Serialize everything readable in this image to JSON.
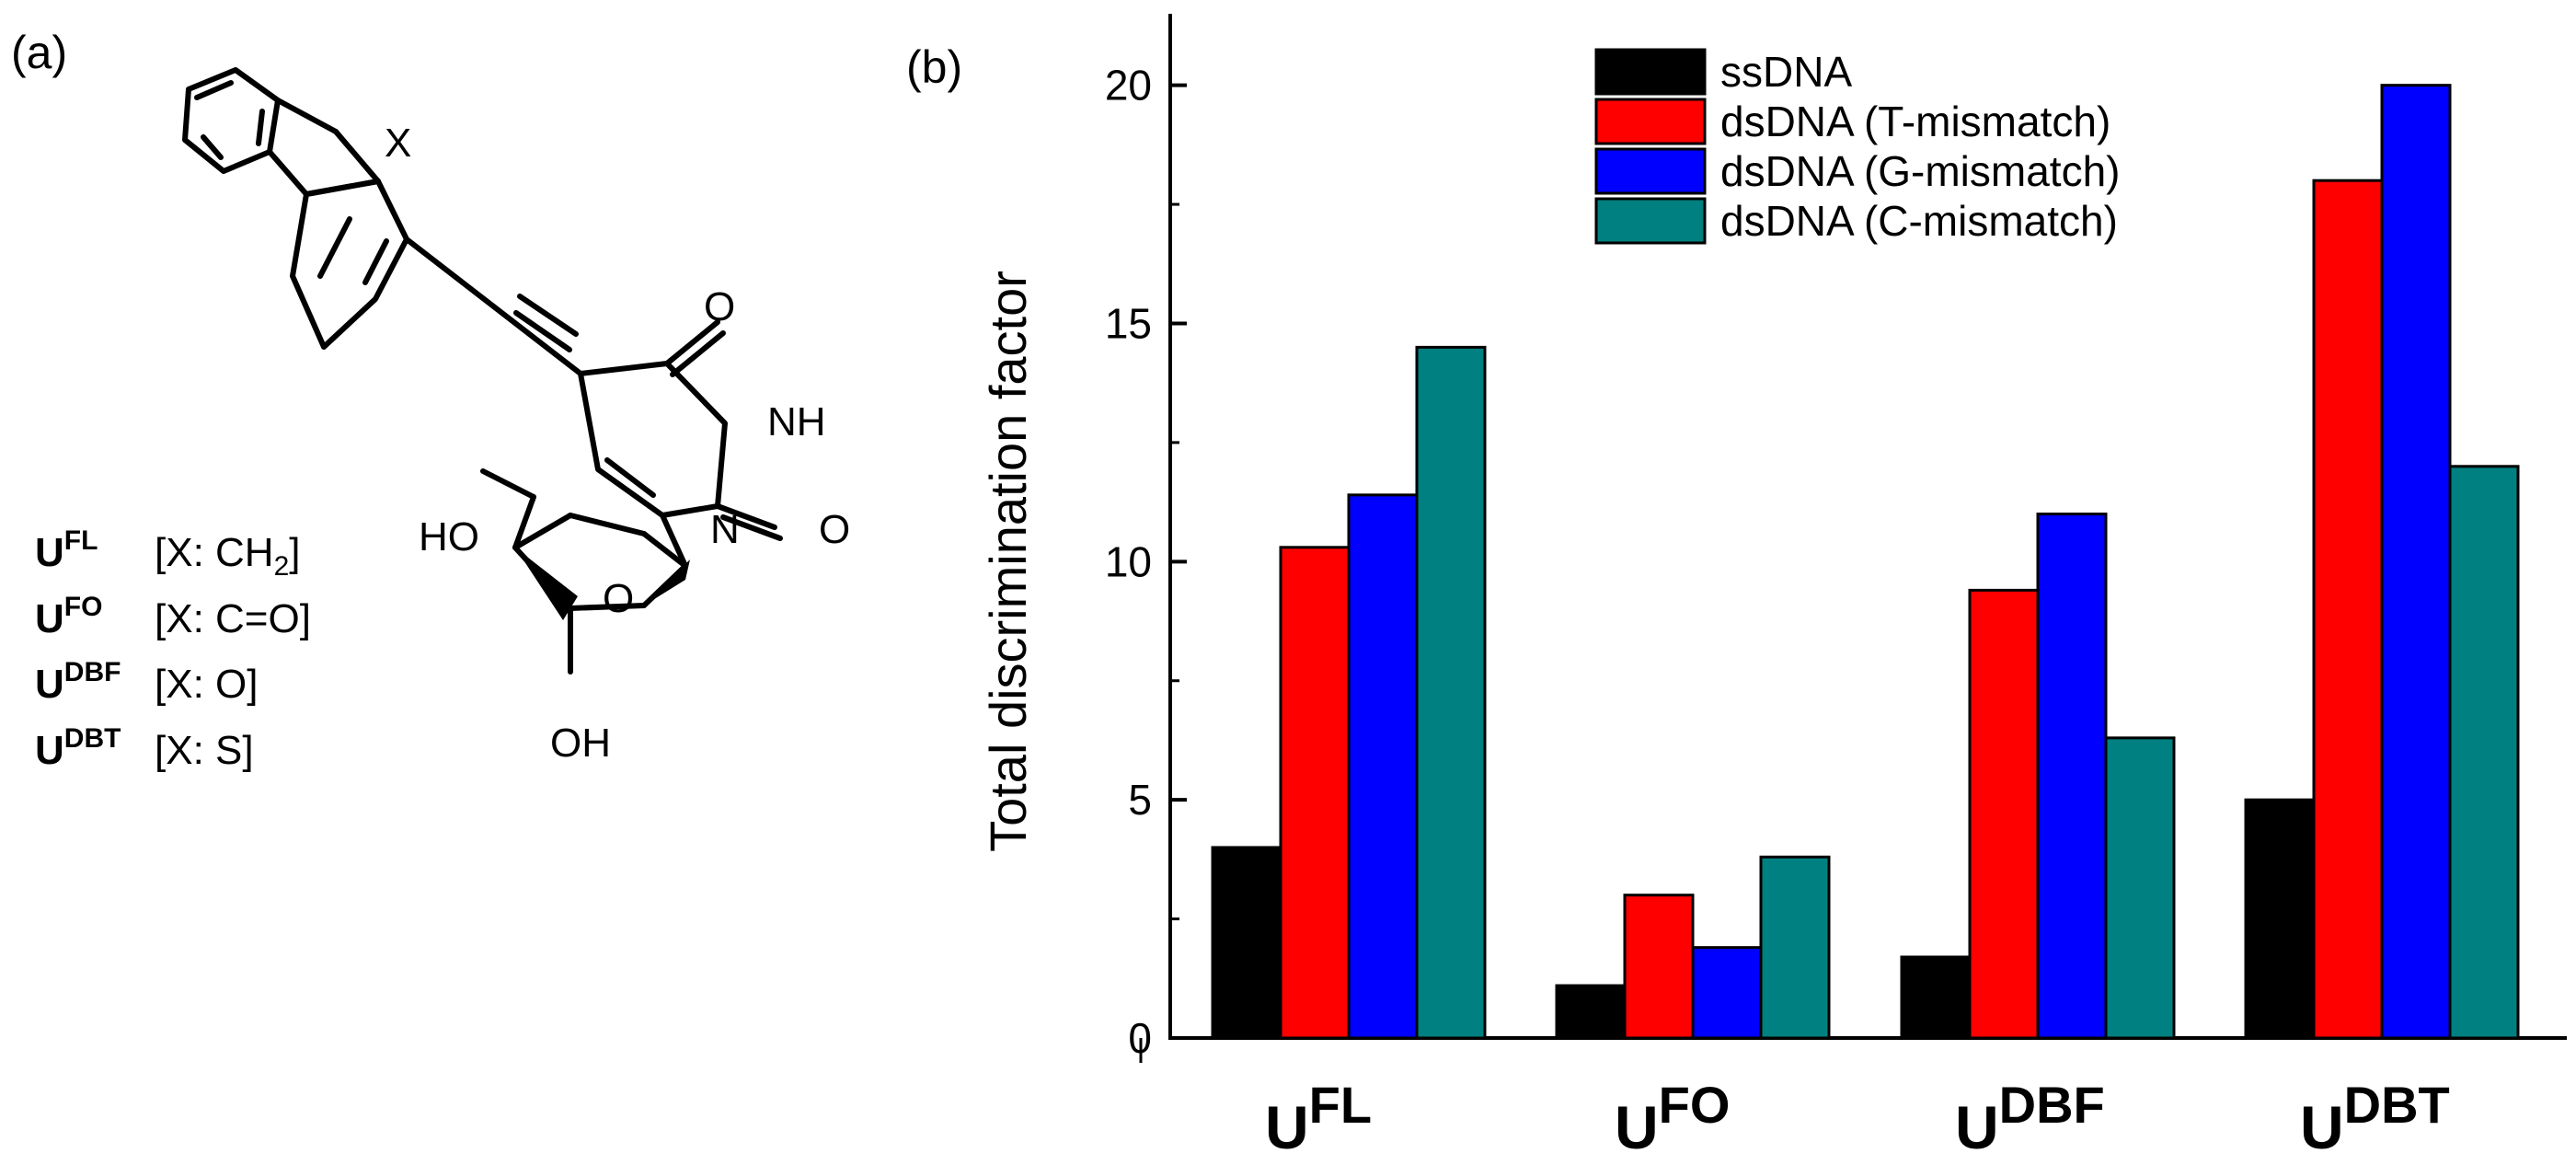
{
  "panel_a": {
    "label": "(a)",
    "atoms": {
      "x": "X",
      "o_top": "O",
      "nh": "NH",
      "o_right": "O",
      "n": "N",
      "ho": "HO",
      "o_ring": "O",
      "oh": "OH"
    },
    "legend": [
      {
        "base": "U",
        "sup": "FL",
        "text_before": "[X: CH",
        "sub": "2",
        "text_after": "]"
      },
      {
        "base": "U",
        "sup": "FO",
        "text_before": "[X: C=O]",
        "sub": "",
        "text_after": ""
      },
      {
        "base": "U",
        "sup": "DBF",
        "text_before": "[X: O]",
        "sub": "",
        "text_after": ""
      },
      {
        "base": "U",
        "sup": "DBT",
        "text_before": "[X: S]",
        "sub": "",
        "text_after": ""
      }
    ]
  },
  "panel_b": {
    "label": "(b)"
  },
  "chart_data": {
    "type": "bar",
    "title": "",
    "xlabel": "",
    "ylabel": "Total discrimination factor",
    "ylim": [
      0,
      21.5
    ],
    "yticks": [
      0,
      5,
      10,
      15,
      20
    ],
    "tick_labels": [
      "0",
      "5",
      "10",
      "15",
      "20"
    ],
    "categories": [
      {
        "base": "U",
        "sup": "FL"
      },
      {
        "base": "U",
        "sup": "FO"
      },
      {
        "base": "U",
        "sup": "DBF"
      },
      {
        "base": "U",
        "sup": "DBT"
      }
    ],
    "legend_position": "top-right",
    "series": [
      {
        "name": "ssDNA",
        "color": "#000000",
        "values": [
          4.0,
          1.1,
          1.7,
          5.0
        ]
      },
      {
        "name": "dsDNA (T-mismatch)",
        "color": "#ff0000",
        "values": [
          10.3,
          3.0,
          9.4,
          18.0
        ]
      },
      {
        "name": "dsDNA (G-mismatch)",
        "color": "#0000ff",
        "values": [
          11.4,
          1.9,
          11.0,
          20.0
        ]
      },
      {
        "name": "dsDNA (C-mismatch)",
        "color": "#008080",
        "values": [
          14.5,
          3.8,
          6.3,
          12.0
        ]
      }
    ]
  }
}
